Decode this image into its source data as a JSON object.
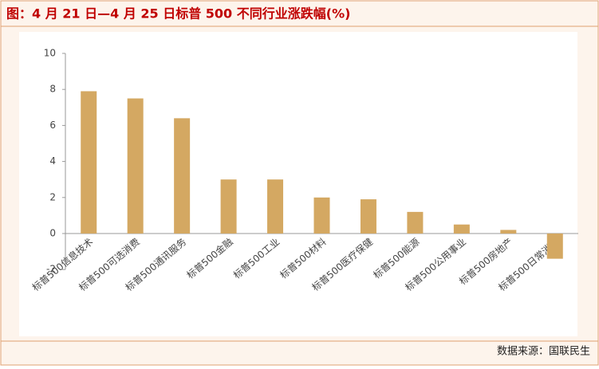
{
  "title": "图：4 月 21 日—4 月 25 日标普 500 不同行业涨跌幅(%)",
  "source": "数据来源：国联民生",
  "chart_data": {
    "type": "bar",
    "categories": [
      "标普500信息技术",
      "标普500可选消费",
      "标普500通讯服务",
      "标普500金融",
      "标普500工业",
      "标普500材料",
      "标普500医疗保健",
      "标普500能源",
      "标普500公用事业",
      "标普500房地产",
      "标普500日常消费"
    ],
    "values": [
      7.9,
      7.5,
      6.4,
      3.0,
      3.0,
      2.0,
      1.9,
      1.2,
      0.5,
      0.2,
      -1.4
    ],
    "color": "#d4a862",
    "ylim": [
      -2,
      10
    ],
    "yticks": [
      -2,
      0,
      2,
      4,
      6,
      8,
      10
    ],
    "grid": false
  }
}
